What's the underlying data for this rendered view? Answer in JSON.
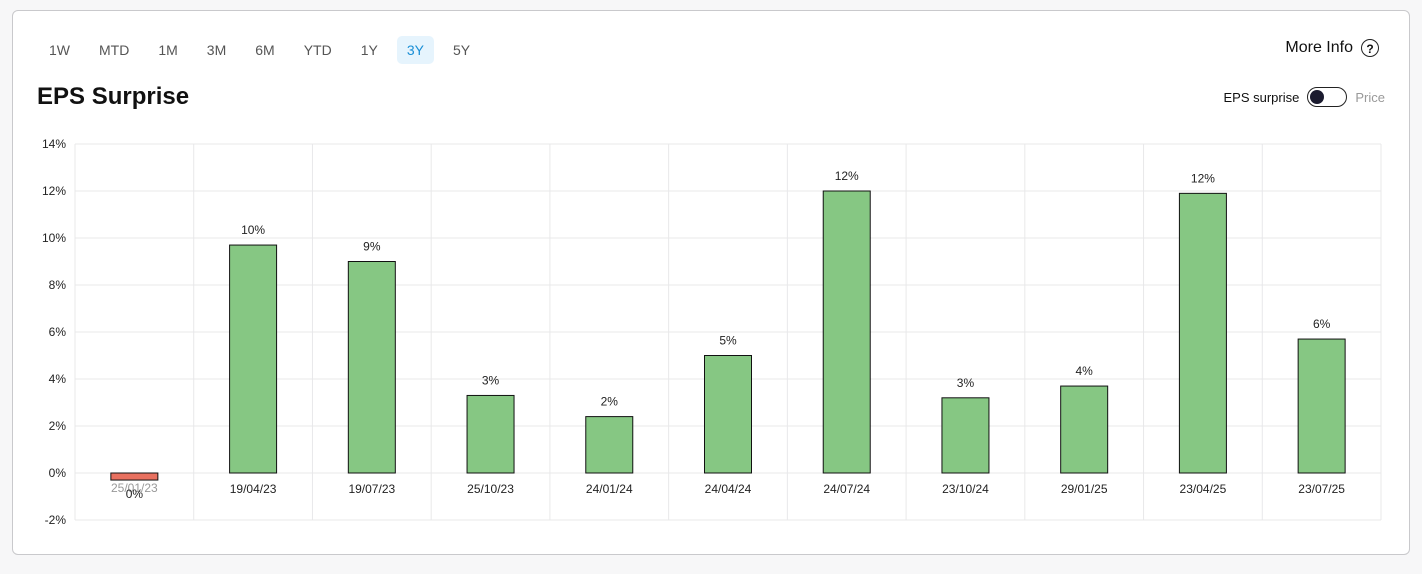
{
  "ranges": [
    "1W",
    "MTD",
    "1M",
    "3M",
    "6M",
    "YTD",
    "1Y",
    "3Y",
    "5Y"
  ],
  "active_range": "3Y",
  "more_info_label": "More Info",
  "help_glyph": "?",
  "title": "EPS Surprise",
  "toggle": {
    "left_label": "EPS surprise",
    "right_label": "Price",
    "state": "eps"
  },
  "colors": {
    "positive": "#86c783",
    "negative": "#e8705f",
    "active_range": "#1a8fd6"
  },
  "chart_data": {
    "type": "bar",
    "title": "EPS Surprise",
    "xlabel": "",
    "ylabel": "",
    "ylim": [
      -2,
      14
    ],
    "yticks": [
      -2,
      0,
      2,
      4,
      6,
      8,
      10,
      12,
      14
    ],
    "ytick_labels": [
      "-2%",
      "0%",
      "2%",
      "4%",
      "6%",
      "8%",
      "10%",
      "12%",
      "14%"
    ],
    "grid": true,
    "categories": [
      "25/01/23",
      "19/04/23",
      "19/07/23",
      "25/10/23",
      "24/01/24",
      "24/04/24",
      "24/07/24",
      "23/10/24",
      "29/01/25",
      "23/04/25",
      "23/07/25"
    ],
    "values": [
      -0.3,
      9.7,
      9.0,
      3.3,
      2.4,
      5.0,
      12.0,
      3.2,
      3.7,
      11.9,
      5.7
    ],
    "data_labels": [
      "0%",
      "10%",
      "9%",
      "3%",
      "2%",
      "5%",
      "12%",
      "3%",
      "4%",
      "12%",
      "6%"
    ]
  }
}
